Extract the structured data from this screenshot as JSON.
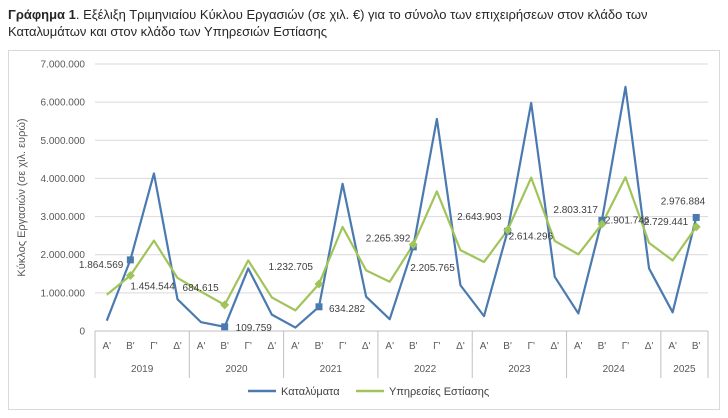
{
  "caption": {
    "prefix": "Γράφημα 1",
    "text": ". Εξέλιξη Τριμηνιαίου Κύκλου Εργασιών (σε χιλ. €) για το σύνολο των επιχειρήσεων στον κλάδο των Καταλυμάτων και στον κλάδο των Υπηρεσιών Εστίασης"
  },
  "chart_data": {
    "type": "line",
    "ylabel": "Κύκλος Εργασιών (σε χιλ. ευρώ)",
    "ylim": [
      0,
      7000000
    ],
    "yticks": [
      "0",
      "1.000.000",
      "2.000.000",
      "3.000.000",
      "4.000.000",
      "5.000.000",
      "6.000.000",
      "7.000.000"
    ],
    "grid": true,
    "legend_position": "bottom",
    "quarters": [
      "Α'",
      "Β'",
      "Γ'",
      "Δ'",
      "Α'",
      "Β'",
      "Γ'",
      "Δ'",
      "Α'",
      "Β'",
      "Γ'",
      "Δ'",
      "Α'",
      "Β'",
      "Γ'",
      "Δ'",
      "Α'",
      "Β'",
      "Γ'",
      "Δ'",
      "Α'",
      "Β'",
      "Γ'",
      "Δ'",
      "Α'",
      "Β'"
    ],
    "years": [
      {
        "label": "2019",
        "count": 4
      },
      {
        "label": "2020",
        "count": 4
      },
      {
        "label": "2021",
        "count": 4
      },
      {
        "label": "2022",
        "count": 4
      },
      {
        "label": "2023",
        "count": 4
      },
      {
        "label": "2024",
        "count": 4
      },
      {
        "label": "2025",
        "count": 2
      }
    ],
    "series": [
      {
        "name": "Καταλύματα",
        "color": "#4a7ab0",
        "values": [
          270000,
          1864569,
          4130000,
          830000,
          230000,
          109759,
          1640000,
          430000,
          90000,
          634282,
          3860000,
          900000,
          310000,
          2205765,
          5560000,
          1200000,
          390000,
          2614296,
          5980000,
          1420000,
          460000,
          2901746,
          6400000,
          1640000,
          490000,
          2976884
        ]
      },
      {
        "name": "Υπηρεσίες Εστίασης",
        "color": "#a1c45a",
        "values": [
          950000,
          1454544,
          2370000,
          1390000,
          1030000,
          684615,
          1850000,
          880000,
          540000,
          1232705,
          2730000,
          1590000,
          1290000,
          2265392,
          3660000,
          2120000,
          1810000,
          2643903,
          4020000,
          2360000,
          2010000,
          2803317,
          4030000,
          2310000,
          1850000,
          2729441
        ]
      }
    ],
    "data_labels": [
      {
        "series": 0,
        "index": 1,
        "text": "1.864.569",
        "anchor": "end",
        "dx": -7,
        "dy": 8
      },
      {
        "series": 1,
        "index": 1,
        "text": "1.454.544",
        "anchor": "start",
        "dx": 0,
        "dy": 14
      },
      {
        "series": 1,
        "index": 5,
        "text": "684.615",
        "anchor": "end",
        "dx": -6,
        "dy": -14
      },
      {
        "series": 0,
        "index": 5,
        "text": "109.759",
        "anchor": "start",
        "dx": 11,
        "dy": 4
      },
      {
        "series": 1,
        "index": 9,
        "text": "1.232.705",
        "anchor": "end",
        "dx": -6,
        "dy": -14
      },
      {
        "series": 0,
        "index": 9,
        "text": "634.282",
        "anchor": "start",
        "dx": 10,
        "dy": 5
      },
      {
        "series": 1,
        "index": 13,
        "text": "2.265.392",
        "anchor": "end",
        "dx": -3,
        "dy": -3
      },
      {
        "series": 0,
        "index": 13,
        "text": "2.205.765",
        "anchor": "start",
        "dx": -3,
        "dy": 24
      },
      {
        "series": 1,
        "index": 17,
        "text": "2.643.903",
        "anchor": "end",
        "dx": -6,
        "dy": -10
      },
      {
        "series": 0,
        "index": 17,
        "text": "2.614.296",
        "anchor": "start",
        "dx": 1,
        "dy": 8
      },
      {
        "series": 1,
        "index": 21,
        "text": "2.803.317",
        "anchor": "end",
        "dx": -4,
        "dy": -11
      },
      {
        "series": 0,
        "index": 21,
        "text": "2.901.746",
        "anchor": "start",
        "dx": 3,
        "dy": 3
      },
      {
        "series": 0,
        "index": 25,
        "text": "2.976.884",
        "anchor": "end",
        "dx": 9,
        "dy": -13
      },
      {
        "series": 1,
        "index": 25,
        "text": "2.729.441",
        "anchor": "end",
        "dx": -8,
        "dy": -2
      }
    ],
    "markers": [
      {
        "series": 0,
        "indices": [
          1,
          5,
          9,
          13,
          17,
          21,
          25
        ],
        "shape": "square"
      },
      {
        "series": 1,
        "indices": [
          1,
          5,
          9,
          13,
          17,
          21,
          25
        ],
        "shape": "diamond"
      }
    ]
  }
}
